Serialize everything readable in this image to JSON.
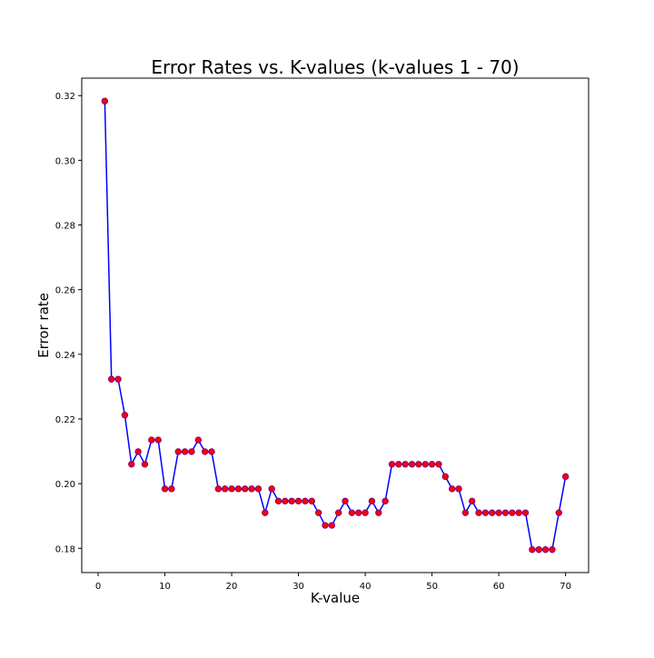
{
  "chart_data": {
    "type": "line",
    "title": "Error Rates vs. K-values (k-values 1 - 70)",
    "xlabel": "K-value",
    "ylabel": "Error rate",
    "xlim": [
      -2.45,
      73.45
    ],
    "ylim": [
      0.1725,
      0.3254
    ],
    "xticks": [
      0,
      10,
      20,
      30,
      40,
      50,
      60,
      70
    ],
    "yticks": [
      0.18,
      0.2,
      0.22,
      0.24,
      0.26,
      0.28,
      0.3,
      0.32
    ],
    "ytick_labels": [
      "0.18",
      "0.20",
      "0.22",
      "0.24",
      "0.26",
      "0.28",
      "0.30",
      "0.32"
    ],
    "grid": false,
    "legend": "none",
    "line_color": "#0000ff",
    "marker_face_color": "#ff0000",
    "marker_edge_color": "#800080",
    "series": [
      {
        "x": [
          1,
          2,
          3,
          4,
          5,
          6,
          7,
          8,
          9,
          10,
          11,
          12,
          13,
          14,
          15,
          16,
          17,
          18,
          19,
          20,
          21,
          22,
          23,
          24,
          25,
          26,
          27,
          28,
          29,
          30,
          31,
          32,
          33,
          34,
          35,
          36,
          37,
          38,
          39,
          40,
          41,
          42,
          43,
          44,
          45,
          46,
          47,
          48,
          49,
          50,
          51,
          52,
          53,
          54,
          55,
          56,
          57,
          58,
          59,
          60,
          61,
          62,
          63,
          64,
          65,
          66,
          67,
          68,
          69,
          70
        ],
        "values": [
          0.3183,
          0.2323,
          0.2323,
          0.2212,
          0.206,
          0.2099,
          0.206,
          0.2135,
          0.2135,
          0.1984,
          0.1984,
          0.2099,
          0.2099,
          0.2099,
          0.2135,
          0.2099,
          0.2099,
          0.1984,
          0.1984,
          0.1984,
          0.1984,
          0.1984,
          0.1984,
          0.1984,
          0.191,
          0.1984,
          0.1946,
          0.1946,
          0.1946,
          0.1946,
          0.1946,
          0.1946,
          0.191,
          0.1871,
          0.1871,
          0.191,
          0.1946,
          0.191,
          0.191,
          0.191,
          0.1946,
          0.191,
          0.1946,
          0.206,
          0.206,
          0.206,
          0.206,
          0.206,
          0.206,
          0.206,
          0.206,
          0.2022,
          0.1984,
          0.1984,
          0.191,
          0.1946,
          0.191,
          0.191,
          0.191,
          0.191,
          0.191,
          0.191,
          0.191,
          0.191,
          0.1796,
          0.1796,
          0.1796,
          0.1796,
          0.191,
          0.2022
        ]
      }
    ]
  }
}
